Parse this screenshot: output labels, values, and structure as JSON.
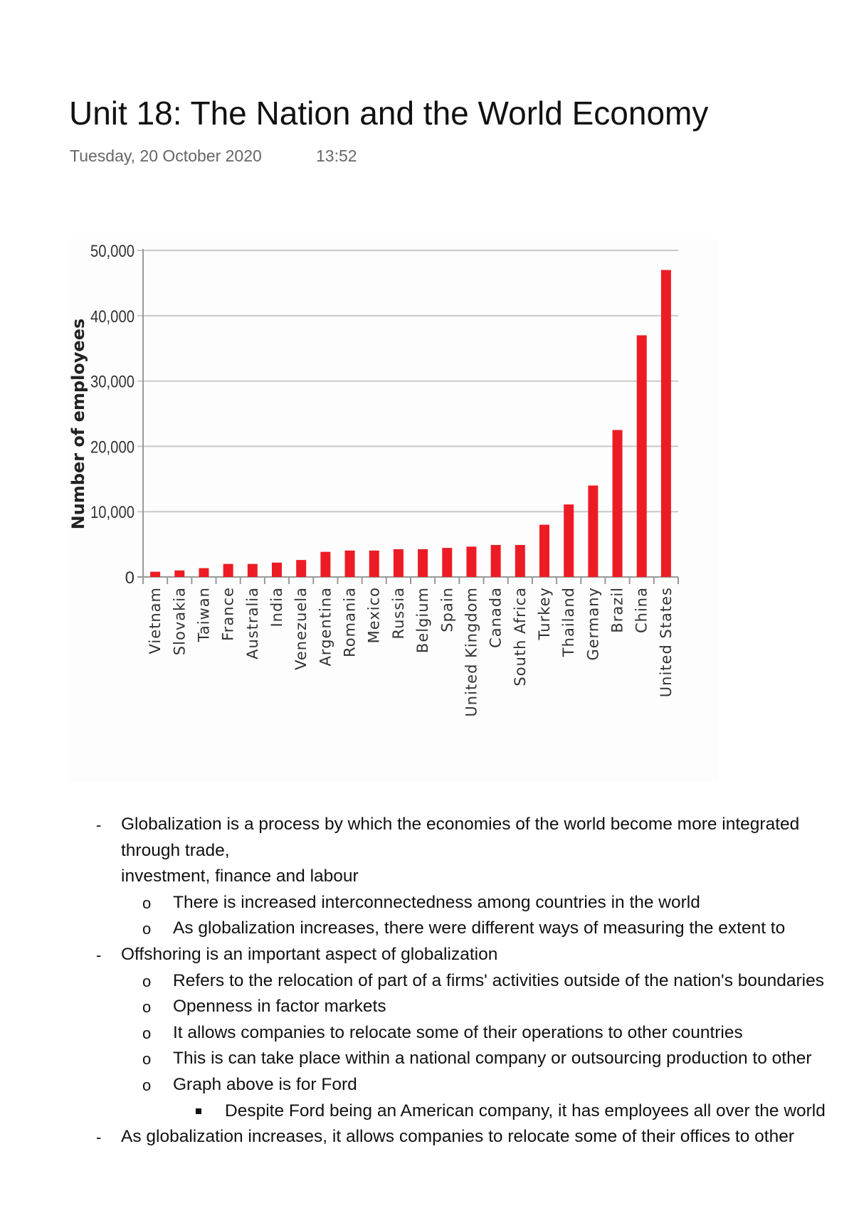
{
  "page": {
    "title": "Unit 18: The Nation and the World Economy",
    "date": "Tuesday, 20 October 2020",
    "time": "13:52"
  },
  "chart_data": {
    "type": "bar",
    "ylabel": "Number of employees",
    "xlabel": "",
    "ylim": [
      0,
      50000
    ],
    "yticks": [
      "0",
      "10,000",
      "20,000",
      "30,000",
      "40,000",
      "50,000"
    ],
    "grid": true,
    "bar_color": "#ed1c24",
    "categories": [
      "Vietnam",
      "Slovakia",
      "Taiwan",
      "France",
      "Australia",
      "India",
      "Venezuela",
      "Argentina",
      "Romania",
      "Mexico",
      "Russia",
      "Belgium",
      "Spain",
      "United Kingdom",
      "Canada",
      "South Africa",
      "Turkey",
      "Thailand",
      "Germany",
      "Brazil",
      "China",
      "United States"
    ],
    "values": [
      800,
      1000,
      1350,
      2000,
      2000,
      2200,
      2600,
      3850,
      4050,
      4050,
      4250,
      4250,
      4450,
      4650,
      4900,
      4900,
      8000,
      11100,
      14000,
      22500,
      37000,
      47000
    ]
  },
  "notes": [
    {
      "level": 1,
      "marker": "-",
      "text": "Globalization is a process by which the economies of the world become more integrated through trade,"
    },
    {
      "level": 1,
      "marker": "",
      "text": "investment, finance and labour"
    },
    {
      "level": 2,
      "marker": "o",
      "text": "There is increased interconnectedness among countries in the world"
    },
    {
      "level": 2,
      "marker": "o",
      "text": "As globalization increases, there were different ways of measuring the extent to"
    },
    {
      "level": 1,
      "marker": "-",
      "text": "Offshoring is an important aspect of globalization"
    },
    {
      "level": 2,
      "marker": "o",
      "text": "Refers to the relocation of part of a firms' activities outside of the nation's boundaries"
    },
    {
      "level": 2,
      "marker": "o",
      "text": "Openness  in factor markets"
    },
    {
      "level": 2,
      "marker": "o",
      "text": "It allows companies to relocate some of their operations to other countries"
    },
    {
      "level": 2,
      "marker": "o",
      "text": "This is can take place within a national company or outsourcing production to other"
    },
    {
      "level": 2,
      "marker": "o",
      "text": "Graph above is for Ford"
    },
    {
      "level": 3,
      "marker": "square",
      "text": "Despite Ford being an American company, it has employees all over the world"
    },
    {
      "level": 1,
      "marker": "-",
      "text": "As globalization increases, it allows companies to relocate some of their offices to other"
    }
  ]
}
